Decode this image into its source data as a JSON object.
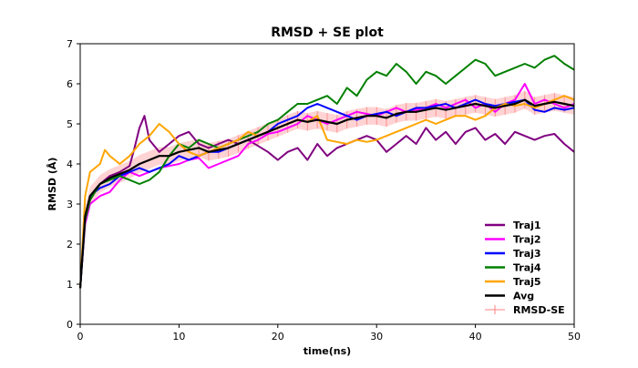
{
  "chart_data": {
    "type": "line",
    "title": "RMSD + SE plot",
    "xlabel": "time(ns)",
    "ylabel": "RMSD (Å)",
    "xlim": [
      0,
      50
    ],
    "ylim": [
      0,
      7
    ],
    "xticks": [
      "0",
      "10",
      "20",
      "30",
      "40",
      "50"
    ],
    "yticks": [
      "0",
      "1",
      "2",
      "3",
      "4",
      "5",
      "6",
      "7"
    ],
    "grid": false,
    "legend_position": "lower-right",
    "series": [
      {
        "name": "Traj1",
        "color": "#800080",
        "points": [
          [
            0,
            0.9
          ],
          [
            0.5,
            2.6
          ],
          [
            1,
            3.1
          ],
          [
            2,
            3.5
          ],
          [
            3,
            3.7
          ],
          [
            4,
            3.8
          ],
          [
            5,
            3.95
          ],
          [
            5.5,
            4.4
          ],
          [
            6,
            4.9
          ],
          [
            6.5,
            5.2
          ],
          [
            7,
            4.6
          ],
          [
            8,
            4.3
          ],
          [
            9,
            4.5
          ],
          [
            10,
            4.7
          ],
          [
            11,
            4.8
          ],
          [
            12,
            4.5
          ],
          [
            13,
            4.4
          ],
          [
            14,
            4.5
          ],
          [
            15,
            4.6
          ],
          [
            16,
            4.5
          ],
          [
            17,
            4.6
          ],
          [
            18,
            4.45
          ],
          [
            19,
            4.3
          ],
          [
            20,
            4.1
          ],
          [
            21,
            4.3
          ],
          [
            22,
            4.4
          ],
          [
            23,
            4.1
          ],
          [
            24,
            4.5
          ],
          [
            25,
            4.2
          ],
          [
            26,
            4.4
          ],
          [
            27,
            4.5
          ],
          [
            28,
            4.6
          ],
          [
            29,
            4.7
          ],
          [
            30,
            4.6
          ],
          [
            31,
            4.3
          ],
          [
            32,
            4.5
          ],
          [
            33,
            4.7
          ],
          [
            34,
            4.5
          ],
          [
            35,
            4.9
          ],
          [
            36,
            4.6
          ],
          [
            37,
            4.8
          ],
          [
            38,
            4.5
          ],
          [
            39,
            4.8
          ],
          [
            40,
            4.9
          ],
          [
            41,
            4.6
          ],
          [
            42,
            4.75
          ],
          [
            43,
            4.5
          ],
          [
            44,
            4.8
          ],
          [
            45,
            4.7
          ],
          [
            46,
            4.6
          ],
          [
            47,
            4.7
          ],
          [
            48,
            4.75
          ],
          [
            49,
            4.5
          ],
          [
            50,
            4.3
          ]
        ]
      },
      {
        "name": "Traj2",
        "color": "#ff00ff",
        "points": [
          [
            0,
            0.9
          ],
          [
            0.5,
            2.5
          ],
          [
            1,
            3.0
          ],
          [
            2,
            3.2
          ],
          [
            3,
            3.3
          ],
          [
            4,
            3.6
          ],
          [
            5,
            3.8
          ],
          [
            6,
            3.7
          ],
          [
            7,
            3.8
          ],
          [
            8,
            3.9
          ],
          [
            9,
            3.95
          ],
          [
            10,
            4.0
          ],
          [
            11,
            4.1
          ],
          [
            12,
            4.15
          ],
          [
            13,
            3.9
          ],
          [
            14,
            4.0
          ],
          [
            15,
            4.1
          ],
          [
            16,
            4.2
          ],
          [
            17,
            4.5
          ],
          [
            18,
            4.6
          ],
          [
            19,
            4.75
          ],
          [
            20,
            4.8
          ],
          [
            21,
            4.9
          ],
          [
            22,
            5.0
          ],
          [
            23,
            5.2
          ],
          [
            24,
            5.1
          ],
          [
            25,
            5.0
          ],
          [
            26,
            5.1
          ],
          [
            27,
            5.2
          ],
          [
            28,
            5.3
          ],
          [
            29,
            5.25
          ],
          [
            30,
            5.2
          ],
          [
            31,
            5.3
          ],
          [
            32,
            5.4
          ],
          [
            33,
            5.3
          ],
          [
            34,
            5.35
          ],
          [
            35,
            5.4
          ],
          [
            36,
            5.5
          ],
          [
            37,
            5.4
          ],
          [
            38,
            5.5
          ],
          [
            39,
            5.6
          ],
          [
            40,
            5.4
          ],
          [
            41,
            5.5
          ],
          [
            42,
            5.3
          ],
          [
            43,
            5.5
          ],
          [
            44,
            5.6
          ],
          [
            45,
            6.0
          ],
          [
            46,
            5.5
          ],
          [
            47,
            5.6
          ],
          [
            48,
            5.5
          ],
          [
            49,
            5.4
          ],
          [
            50,
            5.5
          ]
        ]
      },
      {
        "name": "Traj3",
        "color": "#0000ff",
        "points": [
          [
            0,
            0.9
          ],
          [
            0.5,
            2.6
          ],
          [
            1,
            3.2
          ],
          [
            2,
            3.4
          ],
          [
            3,
            3.5
          ],
          [
            4,
            3.7
          ],
          [
            5,
            3.8
          ],
          [
            6,
            3.9
          ],
          [
            7,
            3.8
          ],
          [
            8,
            3.9
          ],
          [
            9,
            4.0
          ],
          [
            10,
            4.2
          ],
          [
            11,
            4.1
          ],
          [
            12,
            4.2
          ],
          [
            13,
            4.3
          ],
          [
            14,
            4.3
          ],
          [
            15,
            4.4
          ],
          [
            16,
            4.5
          ],
          [
            17,
            4.6
          ],
          [
            18,
            4.7
          ],
          [
            19,
            4.8
          ],
          [
            20,
            5.0
          ],
          [
            21,
            5.1
          ],
          [
            22,
            5.2
          ],
          [
            23,
            5.4
          ],
          [
            24,
            5.5
          ],
          [
            25,
            5.4
          ],
          [
            26,
            5.3
          ],
          [
            27,
            5.2
          ],
          [
            28,
            5.1
          ],
          [
            29,
            5.2
          ],
          [
            30,
            5.25
          ],
          [
            31,
            5.3
          ],
          [
            32,
            5.2
          ],
          [
            33,
            5.3
          ],
          [
            34,
            5.4
          ],
          [
            35,
            5.4
          ],
          [
            36,
            5.45
          ],
          [
            37,
            5.5
          ],
          [
            38,
            5.4
          ],
          [
            39,
            5.5
          ],
          [
            40,
            5.6
          ],
          [
            41,
            5.5
          ],
          [
            42,
            5.45
          ],
          [
            43,
            5.5
          ],
          [
            44,
            5.55
          ],
          [
            45,
            5.6
          ],
          [
            46,
            5.35
          ],
          [
            47,
            5.3
          ],
          [
            48,
            5.4
          ],
          [
            49,
            5.35
          ],
          [
            50,
            5.4
          ]
        ]
      },
      {
        "name": "Traj4",
        "color": "#008000",
        "points": [
          [
            0,
            0.9
          ],
          [
            0.5,
            2.6
          ],
          [
            1,
            3.1
          ],
          [
            2,
            3.5
          ],
          [
            3,
            3.6
          ],
          [
            4,
            3.7
          ],
          [
            5,
            3.6
          ],
          [
            6,
            3.5
          ],
          [
            7,
            3.6
          ],
          [
            8,
            3.8
          ],
          [
            9,
            4.2
          ],
          [
            10,
            4.5
          ],
          [
            11,
            4.4
          ],
          [
            12,
            4.6
          ],
          [
            13,
            4.5
          ],
          [
            14,
            4.4
          ],
          [
            15,
            4.5
          ],
          [
            16,
            4.6
          ],
          [
            17,
            4.7
          ],
          [
            18,
            4.8
          ],
          [
            19,
            5.0
          ],
          [
            20,
            5.1
          ],
          [
            21,
            5.3
          ],
          [
            22,
            5.5
          ],
          [
            23,
            5.5
          ],
          [
            24,
            5.6
          ],
          [
            25,
            5.7
          ],
          [
            26,
            5.5
          ],
          [
            27,
            5.9
          ],
          [
            28,
            5.7
          ],
          [
            29,
            6.1
          ],
          [
            30,
            6.3
          ],
          [
            31,
            6.2
          ],
          [
            32,
            6.5
          ],
          [
            33,
            6.3
          ],
          [
            34,
            6.0
          ],
          [
            35,
            6.3
          ],
          [
            36,
            6.2
          ],
          [
            37,
            6.0
          ],
          [
            38,
            6.2
          ],
          [
            39,
            6.4
          ],
          [
            40,
            6.6
          ],
          [
            41,
            6.5
          ],
          [
            42,
            6.2
          ],
          [
            43,
            6.3
          ],
          [
            44,
            6.4
          ],
          [
            45,
            6.5
          ],
          [
            46,
            6.4
          ],
          [
            47,
            6.6
          ],
          [
            48,
            6.7
          ],
          [
            49,
            6.5
          ],
          [
            50,
            6.35
          ]
        ]
      },
      {
        "name": "Traj5",
        "color": "#ffa500",
        "points": [
          [
            0,
            0.9
          ],
          [
            0.5,
            3.2
          ],
          [
            1,
            3.8
          ],
          [
            2,
            4.0
          ],
          [
            2.5,
            4.35
          ],
          [
            3,
            4.2
          ],
          [
            4,
            4.0
          ],
          [
            5,
            4.2
          ],
          [
            6,
            4.5
          ],
          [
            7,
            4.7
          ],
          [
            8,
            5.0
          ],
          [
            9,
            4.8
          ],
          [
            10,
            4.5
          ],
          [
            11,
            4.3
          ],
          [
            12,
            4.2
          ],
          [
            13,
            4.3
          ],
          [
            14,
            4.4
          ],
          [
            15,
            4.5
          ],
          [
            16,
            4.6
          ],
          [
            17,
            4.8
          ],
          [
            18,
            4.7
          ],
          [
            19,
            4.8
          ],
          [
            20,
            4.9
          ],
          [
            21,
            5.0
          ],
          [
            22,
            5.1
          ],
          [
            23,
            5.05
          ],
          [
            24,
            5.2
          ],
          [
            25,
            4.6
          ],
          [
            26,
            4.55
          ],
          [
            27,
            4.5
          ],
          [
            28,
            4.6
          ],
          [
            29,
            4.55
          ],
          [
            30,
            4.6
          ],
          [
            31,
            4.7
          ],
          [
            32,
            4.8
          ],
          [
            33,
            4.9
          ],
          [
            34,
            5.0
          ],
          [
            35,
            5.1
          ],
          [
            36,
            5.0
          ],
          [
            37,
            5.1
          ],
          [
            38,
            5.2
          ],
          [
            39,
            5.2
          ],
          [
            40,
            5.1
          ],
          [
            41,
            5.2
          ],
          [
            42,
            5.4
          ],
          [
            43,
            5.5
          ],
          [
            44,
            5.45
          ],
          [
            45,
            5.5
          ],
          [
            46,
            5.4
          ],
          [
            47,
            5.5
          ],
          [
            48,
            5.6
          ],
          [
            49,
            5.7
          ],
          [
            50,
            5.6
          ]
        ]
      },
      {
        "name": "Avg",
        "color": "#000000",
        "points": [
          [
            0,
            0.9
          ],
          [
            0.5,
            2.7
          ],
          [
            1,
            3.2
          ],
          [
            2,
            3.5
          ],
          [
            3,
            3.65
          ],
          [
            4,
            3.75
          ],
          [
            5,
            3.85
          ],
          [
            6,
            4.0
          ],
          [
            7,
            4.1
          ],
          [
            8,
            4.2
          ],
          [
            9,
            4.2
          ],
          [
            10,
            4.3
          ],
          [
            11,
            4.35
          ],
          [
            12,
            4.4
          ],
          [
            13,
            4.3
          ],
          [
            14,
            4.35
          ],
          [
            15,
            4.4
          ],
          [
            16,
            4.5
          ],
          [
            17,
            4.6
          ],
          [
            18,
            4.7
          ],
          [
            19,
            4.8
          ],
          [
            20,
            4.9
          ],
          [
            21,
            5.0
          ],
          [
            22,
            5.1
          ],
          [
            23,
            5.05
          ],
          [
            24,
            5.1
          ],
          [
            25,
            5.05
          ],
          [
            26,
            5.0
          ],
          [
            27,
            5.1
          ],
          [
            28,
            5.15
          ],
          [
            29,
            5.2
          ],
          [
            30,
            5.2
          ],
          [
            31,
            5.15
          ],
          [
            32,
            5.25
          ],
          [
            33,
            5.3
          ],
          [
            34,
            5.3
          ],
          [
            35,
            5.35
          ],
          [
            36,
            5.4
          ],
          [
            37,
            5.35
          ],
          [
            38,
            5.4
          ],
          [
            39,
            5.45
          ],
          [
            40,
            5.5
          ],
          [
            41,
            5.45
          ],
          [
            42,
            5.4
          ],
          [
            43,
            5.45
          ],
          [
            44,
            5.5
          ],
          [
            45,
            5.6
          ],
          [
            46,
            5.45
          ],
          [
            47,
            5.5
          ],
          [
            48,
            5.55
          ],
          [
            49,
            5.5
          ],
          [
            50,
            5.45
          ]
        ]
      }
    ],
    "error_band": {
      "name": "RMSD-SE",
      "color": "#ff8080",
      "se": 0.22
    }
  }
}
